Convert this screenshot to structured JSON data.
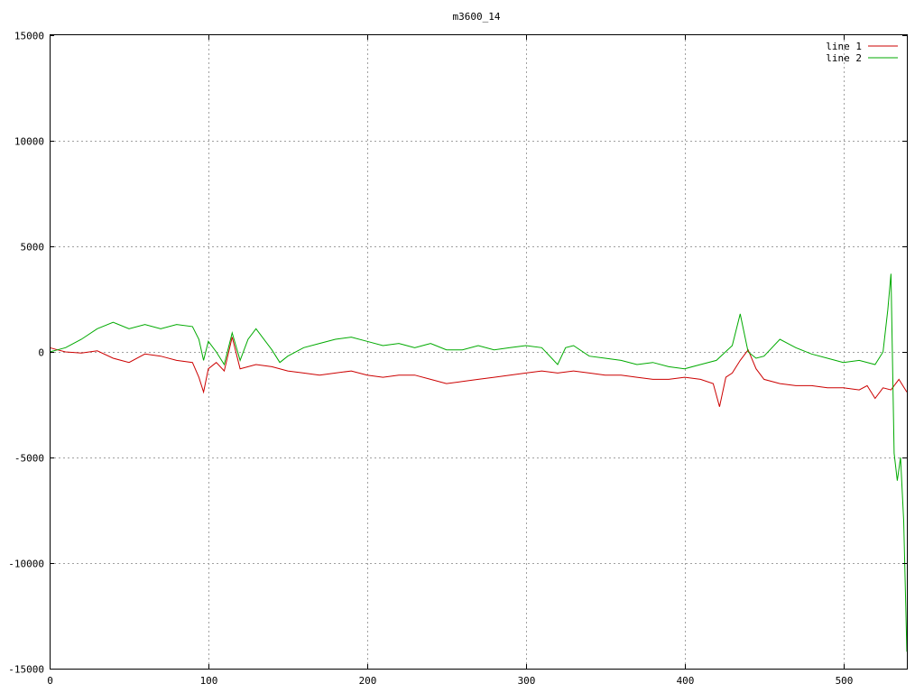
{
  "chart_data": {
    "type": "line",
    "title": "m3600_14",
    "xlabel": "",
    "ylabel": "",
    "xlim": [
      0,
      540
    ],
    "ylim": [
      -15000,
      15000
    ],
    "xticks": [
      0,
      100,
      200,
      300,
      400,
      500
    ],
    "yticks": [
      -15000,
      -10000,
      -5000,
      0,
      5000,
      10000,
      15000
    ],
    "grid": true,
    "legend_position": "top-right",
    "series": [
      {
        "name": "line 1",
        "color": "#cc0000",
        "x": [
          0,
          5,
          10,
          20,
          30,
          40,
          50,
          60,
          70,
          80,
          90,
          94,
          97,
          100,
          105,
          110,
          115,
          120,
          130,
          140,
          150,
          160,
          170,
          180,
          190,
          200,
          210,
          220,
          230,
          240,
          250,
          260,
          270,
          280,
          290,
          300,
          310,
          320,
          330,
          340,
          350,
          360,
          370,
          380,
          390,
          400,
          410,
          418,
          422,
          426,
          430,
          435,
          440,
          445,
          450,
          460,
          470,
          480,
          490,
          500,
          510,
          515,
          520,
          525,
          530,
          535,
          540
        ],
        "y": [
          200,
          100,
          0,
          -50,
          50,
          -300,
          -500,
          -100,
          -200,
          -400,
          -500,
          -1200,
          -1900,
          -800,
          -500,
          -900,
          700,
          -800,
          -600,
          -700,
          -900,
          -1000,
          -1100,
          -1000,
          -900,
          -1100,
          -1200,
          -1100,
          -1100,
          -1300,
          -1500,
          -1400,
          -1300,
          -1200,
          -1100,
          -1000,
          -900,
          -1000,
          -900,
          -1000,
          -1100,
          -1100,
          -1200,
          -1300,
          -1300,
          -1200,
          -1300,
          -1500,
          -2600,
          -1200,
          -1000,
          -400,
          100,
          -800,
          -1300,
          -1500,
          -1600,
          -1600,
          -1700,
          -1700,
          -1800,
          -1600,
          -2200,
          -1700,
          -1800,
          -1300,
          -1900
        ]
      },
      {
        "name": "line 2",
        "color": "#00aa00",
        "x": [
          0,
          5,
          10,
          20,
          30,
          40,
          50,
          60,
          70,
          80,
          90,
          94,
          97,
          100,
          105,
          110,
          115,
          120,
          125,
          130,
          140,
          145,
          150,
          160,
          170,
          180,
          190,
          200,
          210,
          220,
          230,
          240,
          250,
          260,
          270,
          280,
          290,
          300,
          310,
          320,
          325,
          330,
          340,
          350,
          360,
          370,
          380,
          390,
          400,
          410,
          420,
          430,
          435,
          440,
          445,
          450,
          460,
          470,
          480,
          490,
          500,
          510,
          520,
          525,
          528,
          530,
          532,
          534,
          536,
          538,
          540
        ],
        "y": [
          0,
          100,
          200,
          600,
          1100,
          1400,
          1100,
          1300,
          1100,
          1300,
          1200,
          600,
          -400,
          500,
          0,
          -600,
          900,
          -400,
          600,
          1100,
          100,
          -500,
          -200,
          200,
          400,
          600,
          700,
          500,
          300,
          400,
          200,
          400,
          100,
          100,
          300,
          100,
          200,
          300,
          200,
          -600,
          200,
          300,
          -200,
          -300,
          -400,
          -600,
          -500,
          -700,
          -800,
          -600,
          -400,
          300,
          1800,
          0,
          -300,
          -200,
          600,
          200,
          -100,
          -300,
          -500,
          -400,
          -600,
          0,
          2000,
          3700,
          -4800,
          -6100,
          -5000,
          -8000,
          -14200
        ]
      }
    ]
  }
}
